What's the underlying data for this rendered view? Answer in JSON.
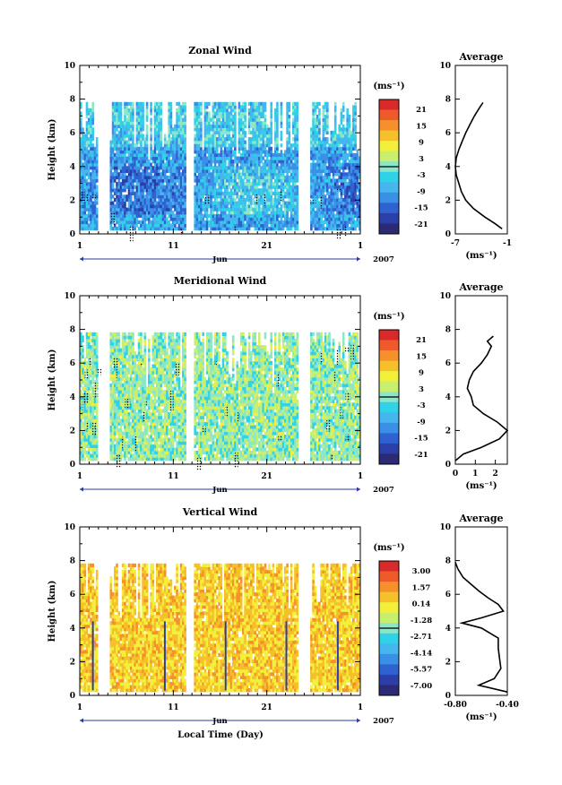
{
  "x_axis_label": "Local Time (Day)",
  "chart_data": [
    {
      "type": "heatmap",
      "title": "Zonal Wind",
      "ylabel": "Height (km)",
      "ylim": [
        0,
        10
      ],
      "yticks": [
        "0",
        "2",
        "4",
        "6",
        "8",
        "10"
      ],
      "xticks": [
        "1",
        "11",
        "21",
        "1"
      ],
      "time_label": "Jun",
      "year_label": "2007",
      "colorbar_unit": "(ms⁻¹)",
      "colorbar_ticks": [
        "21",
        "15",
        "9",
        "3",
        "-3",
        "-9",
        "-15",
        "-21"
      ],
      "colorbar_colors": [
        "#2b2a72",
        "#2c3fa8",
        "#2f61d1",
        "#3a8fe6",
        "#45b7ee",
        "#2fd2e6",
        "#8ce6c8",
        "#c8f06e",
        "#f2f03a",
        "#f5c02a",
        "#f5902a",
        "#ef5a2a",
        "#d92a2a"
      ],
      "base_value": -8,
      "average_title": "Average",
      "average_unit": "(ms⁻¹)",
      "average_xticks": [
        "-7",
        "-1"
      ],
      "average_xlim": [
        -7,
        -1
      ],
      "average_profile": {
        "height": [
          0.3,
          0.6,
          1.0,
          1.5,
          2.0,
          2.5,
          3.0,
          3.5,
          4.0,
          4.5,
          5.0,
          5.5,
          6.0,
          6.5,
          7.0,
          7.5,
          7.8
        ],
        "value": [
          -1.6,
          -2.4,
          -3.6,
          -4.9,
          -5.8,
          -6.3,
          -6.6,
          -6.9,
          -7.0,
          -6.9,
          -6.6,
          -6.2,
          -5.8,
          -5.3,
          -4.8,
          -4.2,
          -3.8
        ]
      }
    },
    {
      "type": "heatmap",
      "title": "Meridional Wind",
      "ylabel": "Height (km)",
      "ylim": [
        0,
        10
      ],
      "yticks": [
        "0",
        "2",
        "4",
        "6",
        "8",
        "10"
      ],
      "xticks": [
        "1",
        "11",
        "21",
        "1"
      ],
      "time_label": "Jun",
      "year_label": "2007",
      "colorbar_unit": "(ms⁻¹)",
      "colorbar_ticks": [
        "21",
        "15",
        "9",
        "3",
        "-3",
        "-9",
        "-15",
        "-21"
      ],
      "colorbar_colors": [
        "#2b2a72",
        "#2c3fa8",
        "#2f61d1",
        "#3a8fe6",
        "#45b7ee",
        "#2fd2e6",
        "#8ce6c8",
        "#c8f06e",
        "#f2f03a",
        "#f5c02a",
        "#f5902a",
        "#ef5a2a",
        "#d92a2a"
      ],
      "base_value": 1,
      "average_title": "Average",
      "average_unit": "(ms⁻¹)",
      "average_xticks": [
        "0",
        "1",
        "2"
      ],
      "average_xlim": [
        0,
        2.6
      ],
      "average_profile": {
        "height": [
          0.2,
          0.6,
          1.0,
          1.5,
          2.0,
          2.5,
          3.0,
          3.5,
          4.0,
          4.5,
          5.0,
          5.5,
          6.0,
          6.5,
          7.0,
          7.3,
          7.6
        ],
        "value": [
          0.0,
          0.4,
          1.3,
          2.2,
          2.6,
          2.1,
          1.4,
          0.9,
          0.8,
          0.6,
          0.7,
          0.9,
          1.3,
          1.6,
          1.8,
          1.6,
          1.9
        ]
      }
    },
    {
      "type": "heatmap",
      "title": "Vertical Wind",
      "ylabel": "Height (km)",
      "ylim": [
        0,
        10
      ],
      "yticks": [
        "0",
        "2",
        "4",
        "6",
        "8",
        "10"
      ],
      "xticks": [
        "1",
        "11",
        "21",
        "1"
      ],
      "time_label": "Jun",
      "year_label": "2007",
      "colorbar_unit": "(ms⁻¹)",
      "colorbar_ticks": [
        "3.00",
        "1.57",
        "0.14",
        "-1.28",
        "-2.71",
        "-4.14",
        "-5.57",
        "-7.00"
      ],
      "colorbar_colors": [
        "#2b2a72",
        "#2c3fa8",
        "#2f61d1",
        "#3a8fe6",
        "#45b7ee",
        "#2fd2e6",
        "#8ce6c8",
        "#c8f06e",
        "#f2f03a",
        "#f5c02a",
        "#f5902a",
        "#ef5a2a",
        "#d92a2a"
      ],
      "base_value": 0.14,
      "average_title": "Average",
      "average_unit": "(ms⁻¹)",
      "average_xticks": [
        "-0.80",
        "-0.40"
      ],
      "average_xlim": [
        -0.8,
        -0.4
      ],
      "average_profile": {
        "height": [
          0.2,
          0.6,
          1.0,
          1.6,
          2.2,
          2.8,
          3.4,
          4.0,
          4.3,
          4.6,
          5.0,
          5.4,
          5.8,
          6.2,
          6.6,
          7.0,
          7.5,
          7.9
        ],
        "value": [
          -0.4,
          -0.62,
          -0.5,
          -0.45,
          -0.46,
          -0.47,
          -0.47,
          -0.6,
          -0.75,
          -0.6,
          -0.43,
          -0.47,
          -0.55,
          -0.62,
          -0.68,
          -0.74,
          -0.78,
          -0.8
        ]
      }
    }
  ]
}
